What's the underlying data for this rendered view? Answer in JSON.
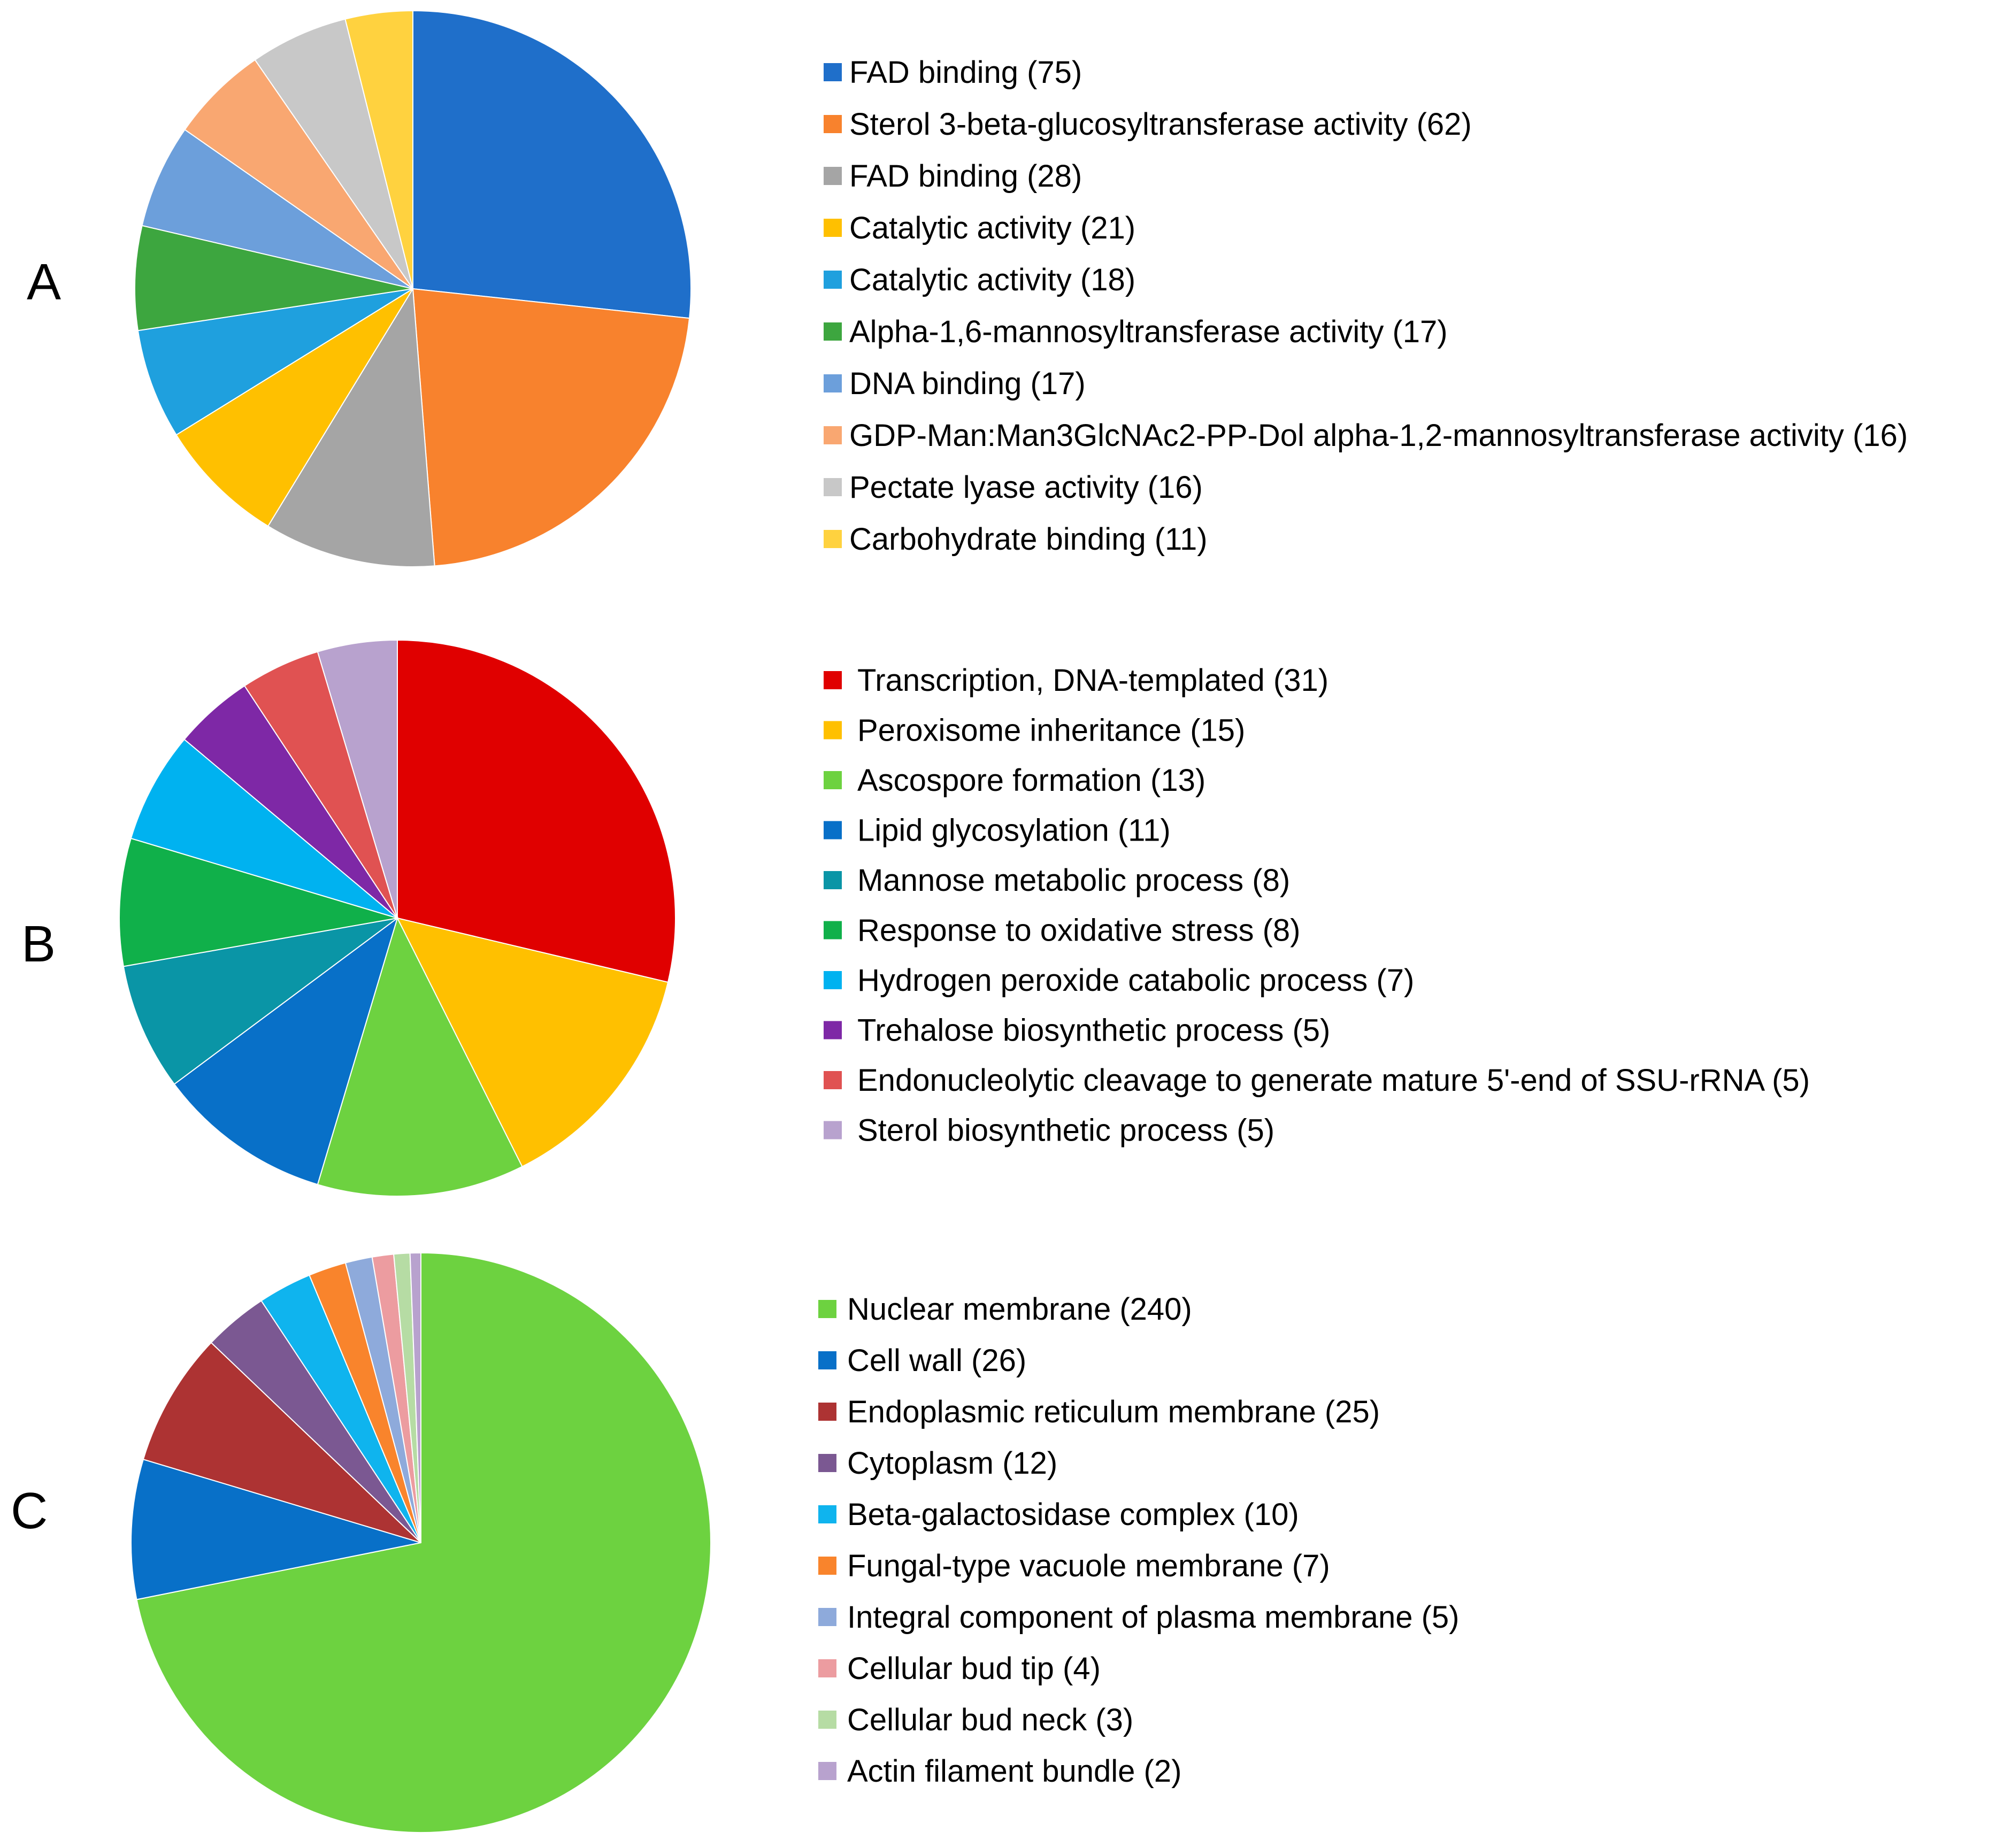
{
  "chart_data": [
    {
      "type": "pie",
      "panel_label": "A",
      "title": "",
      "legend_position": "right",
      "slices": [
        {
          "label": "FAD binding (75)",
          "value": 75,
          "color": "#1F6FCA"
        },
        {
          "label": "Sterol 3-beta-glucosyltransferase activity (62)",
          "value": 62,
          "color": "#F8822D"
        },
        {
          "label": "FAD binding (28)",
          "value": 28,
          "color": "#A5A5A5"
        },
        {
          "label": "Catalytic activity (21)",
          "value": 21,
          "color": "#FFC000"
        },
        {
          "label": "Catalytic activity (18)",
          "value": 18,
          "color": "#1FA0DE"
        },
        {
          "label": "Alpha-1,6-mannosyltransferase activity (17)",
          "value": 17,
          "color": "#3DA63F"
        },
        {
          "label": "DNA binding (17)",
          "value": 17,
          "color": "#6C9FDB"
        },
        {
          "label": "GDP-Man:Man3GlcNAc2-PP-Dol alpha-1,2-mannosyltransferase activity (16)",
          "value": 16,
          "color": "#F9A771"
        },
        {
          "label": "Pectate lyase activity (16)",
          "value": 16,
          "color": "#C8C8C8"
        },
        {
          "label": "Carbohydrate binding (11)",
          "value": 11,
          "color": "#FFD23F"
        }
      ]
    },
    {
      "type": "pie",
      "panel_label": "B",
      "title": "",
      "legend_position": "right",
      "slices": [
        {
          "label": "Transcription, DNA-templated (31)",
          "value": 31,
          "color": "#E00000"
        },
        {
          "label": "Peroxisome inheritance (15)",
          "value": 15,
          "color": "#FFC000"
        },
        {
          "label": "Ascospore formation (13)",
          "value": 13,
          "color": "#6DD240"
        },
        {
          "label": "Lipid glycosylation (11)",
          "value": 11,
          "color": "#0870C8"
        },
        {
          "label": "Mannose metabolic process (8)",
          "value": 8,
          "color": "#0A95A6"
        },
        {
          "label": "Response to oxidative stress (8)",
          "value": 8,
          "color": "#10B04A"
        },
        {
          "label": "Hydrogen peroxide catabolic process (7)",
          "value": 7,
          "color": "#00B2F0"
        },
        {
          "label": "Trehalose biosynthetic process (5)",
          "value": 5,
          "color": "#7E28A6"
        },
        {
          "label": "Endonucleolytic cleavage to generate mature 5'-end of SSU-rRNA (5)",
          "value": 5,
          "color": "#E05252"
        },
        {
          "label": "Sterol biosynthetic process (5)",
          "value": 5,
          "color": "#B8A2CE"
        }
      ]
    },
    {
      "type": "pie",
      "panel_label": "C",
      "title": "",
      "legend_position": "right",
      "slices": [
        {
          "label": "Nuclear membrane (240)",
          "value": 240,
          "color": "#6DD240"
        },
        {
          "label": "Cell wall (26)",
          "value": 26,
          "color": "#0870C8"
        },
        {
          "label": "Endoplasmic reticulum membrane (25)",
          "value": 25,
          "color": "#AD3333"
        },
        {
          "label": "Cytoplasm (12)",
          "value": 12,
          "color": "#7B5892"
        },
        {
          "label": "Beta-galactosidase complex (10)",
          "value": 10,
          "color": "#0FB4EE"
        },
        {
          "label": "Fungal-type vacuole membrane (7)",
          "value": 7,
          "color": "#F9842C"
        },
        {
          "label": "Integral component of plasma membrane (5)",
          "value": 5,
          "color": "#8EAADB"
        },
        {
          "label": "Cellular bud tip (4)",
          "value": 4,
          "color": "#EC9CA0"
        },
        {
          "label": "Cellular bud neck (3)",
          "value": 3,
          "color": "#B6DCA4"
        },
        {
          "label": "Actin filament bundle (2)",
          "value": 2,
          "color": "#B8A2CE"
        }
      ]
    }
  ]
}
